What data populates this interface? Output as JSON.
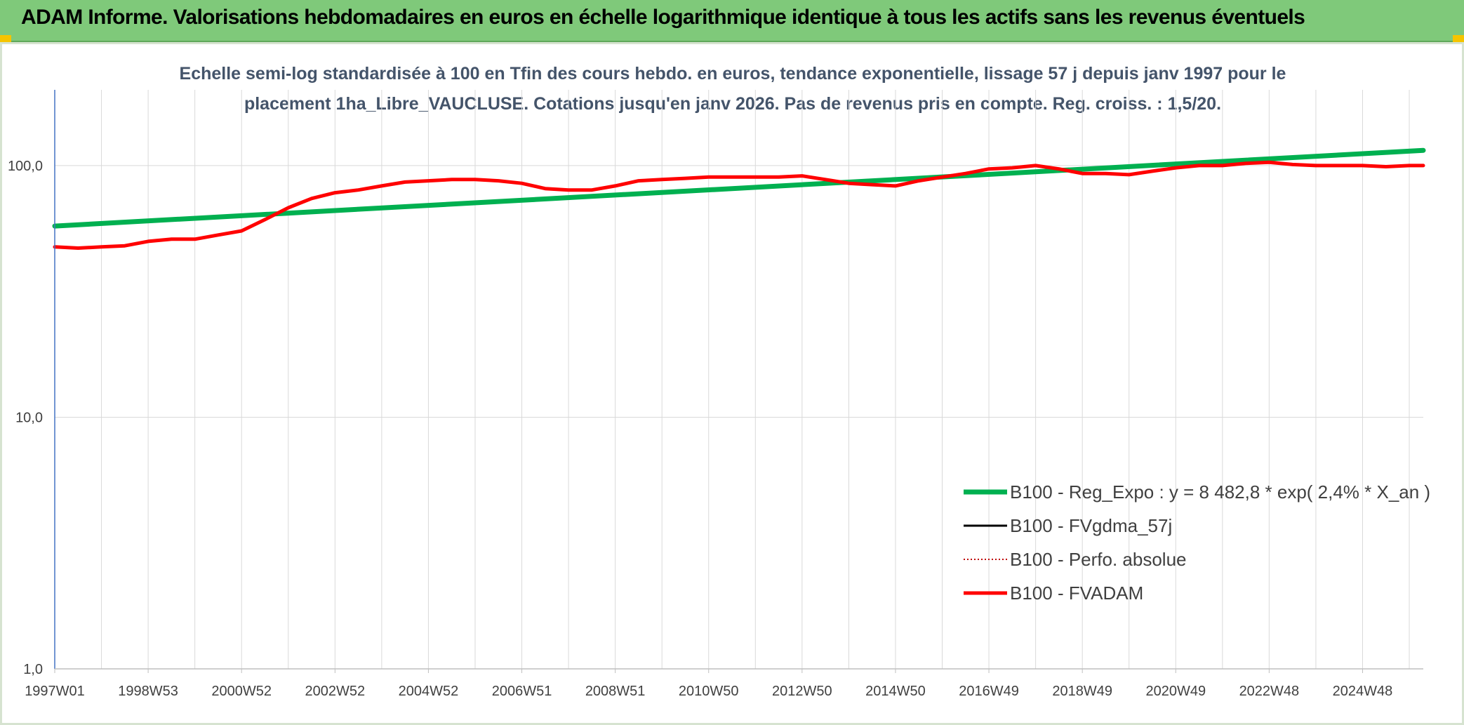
{
  "banner": {
    "title": "ADAM Informe. Valorisations hebdomadaires en euros en échelle logarithmique identique à tous les actifs sans les revenus éventuels"
  },
  "colors": {
    "banner_bg": "#7fc97a",
    "reg_expo": "#00b050",
    "fvgdma": "#000000",
    "perfo": "#c00000",
    "fvadam": "#ff0000",
    "gridline": "#d9d9d9",
    "axis": "#4472c4",
    "subtitle": "#44546a",
    "corner_accent": "#f5c400"
  },
  "chart_data": {
    "type": "line",
    "y_scale": "log",
    "title_lines": [
      "Echelle semi-log standardisée à 100 en Tfin des cours hebdo. en euros, tendance exponentielle, lissage 57 j depuis janv 1997 pour le",
      "placement 1ha_Libre_VAUCLUSE. Cotations jusqu'en janv 2026. Pas de revenus pris en compte. Reg. croiss. : 1,5/20."
    ],
    "xlabel": "",
    "ylabel": "",
    "ylim": [
      1,
      200
    ],
    "xlim": [
      1997.0,
      2026.3
    ],
    "y_ticks": [
      {
        "value": 100,
        "label": "100,0"
      },
      {
        "value": 10,
        "label": "10,0"
      },
      {
        "value": 1,
        "label": "1,0"
      }
    ],
    "x_tick_labels": [
      "1997W01",
      "1998W53",
      "2000W52",
      "2002W52",
      "2004W52",
      "2006W51",
      "2008W51",
      "2010W50",
      "2012W50",
      "2014W50",
      "2016W49",
      "2018W49",
      "2020W49",
      "2022W48",
      "2024W48"
    ],
    "x_tick_values": [
      1997.0,
      1999.0,
      2001.0,
      2003.0,
      2005.0,
      2007.0,
      2009.0,
      2011.0,
      2013.0,
      2015.0,
      2017.0,
      2019.0,
      2021.0,
      2023.0,
      2025.0
    ],
    "grid": true,
    "legend_position": "bottom-right",
    "series": [
      {
        "name": "B100 - Reg_Expo : y = 8 482,8 * exp( 2,4% *  X_an )",
        "style": "solid-thick",
        "x": [
          1997.0,
          2026.3
        ],
        "values": [
          57.5,
          115
        ]
      },
      {
        "name": "B100 - FVgdma_57j",
        "style": "solid-thin",
        "x": [],
        "values": []
      },
      {
        "name": "B100 - Perfo. absolue",
        "style": "dotted",
        "x": [],
        "values": []
      },
      {
        "name": "B100 - FVADAM",
        "style": "solid-thick",
        "x": [
          1997.0,
          1997.5,
          1998.0,
          1998.5,
          1999.0,
          1999.5,
          2000.0,
          2000.5,
          2001.0,
          2001.5,
          2002.0,
          2002.5,
          2003.0,
          2003.5,
          2004.0,
          2004.5,
          2005.0,
          2005.5,
          2006.0,
          2006.5,
          2007.0,
          2007.5,
          2008.0,
          2008.5,
          2009.0,
          2009.5,
          2010.0,
          2010.5,
          2011.0,
          2011.5,
          2012.0,
          2012.5,
          2013.0,
          2013.5,
          2014.0,
          2014.5,
          2015.0,
          2015.5,
          2016.0,
          2016.5,
          2017.0,
          2017.5,
          2018.0,
          2018.5,
          2019.0,
          2019.5,
          2020.0,
          2020.5,
          2021.0,
          2021.5,
          2022.0,
          2022.5,
          2023.0,
          2023.5,
          2024.0,
          2024.5,
          2025.0,
          2025.5,
          2026.0,
          2026.3
        ],
        "values": [
          47.5,
          47,
          47.5,
          48,
          50,
          51,
          51,
          53,
          55,
          61,
          68,
          74,
          78,
          80,
          83,
          86,
          87,
          88,
          88,
          87,
          85,
          81,
          80,
          80,
          83,
          87,
          88,
          89,
          90,
          90,
          90,
          90,
          91,
          88,
          85,
          84,
          83,
          87,
          90,
          93,
          97,
          98,
          100,
          97,
          93,
          93,
          92,
          95,
          98,
          100,
          100,
          102,
          103,
          101,
          100,
          100,
          100,
          99,
          100,
          100
        ]
      }
    ]
  }
}
